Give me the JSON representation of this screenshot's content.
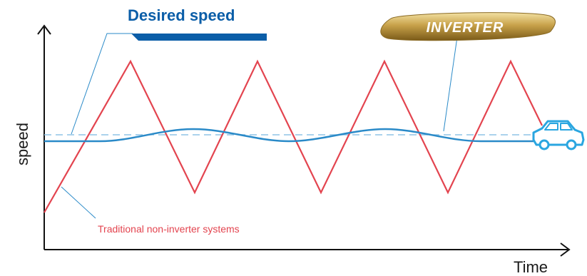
{
  "title": "Desired speed",
  "brand": "INVERTER",
  "axes": {
    "y_label": "speed",
    "x_label": "Time"
  },
  "series": {
    "traditional_label": "Traditional non-inverter systems"
  },
  "colors": {
    "traditional": "#e3444f",
    "inverter": "#2a8ac8",
    "desired_dashed": "#8fc4e6",
    "title": "#0b5ea8",
    "bar": "#0b5ea8",
    "axis": "#111111",
    "logo_gold": "#c8a24a"
  },
  "icons": {
    "car": "car-outline-icon"
  }
}
